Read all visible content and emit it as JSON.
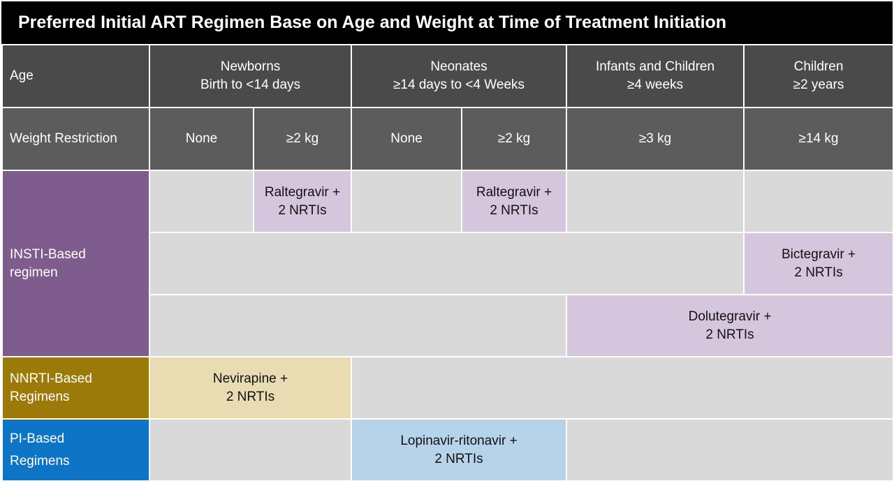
{
  "title": "Preferred Initial ART Regimen Base on Age and Weight at Time of Treatment Initiation",
  "age_label": "Age",
  "weight_label": "Weight Restriction",
  "age_groups": [
    {
      "name": "Newborns",
      "range": "Birth to <14 days"
    },
    {
      "name": "Neonates",
      "range": "≥14 days to <4 Weeks"
    },
    {
      "name": "Infants and Children",
      "range": "≥4 weeks"
    },
    {
      "name": "Children",
      "range": "≥2 years"
    }
  ],
  "weights": [
    "None",
    "≥2 kg",
    "None",
    "≥2 kg",
    "≥3 kg",
    "≥14 kg"
  ],
  "categories": {
    "insti": {
      "line1": "INSTI-Based",
      "line2": "regimen"
    },
    "nnrti": {
      "line1": "NNRTI-Based",
      "line2": "Regimens"
    },
    "pi": {
      "line1": "PI-Based",
      "line2": "Regimens"
    }
  },
  "regimens": {
    "raltegravir_newborn": {
      "line1": "Raltegravir +",
      "line2": "2 NRTIs"
    },
    "raltegravir_neonate": {
      "line1": "Raltegravir +",
      "line2": "2 NRTIs"
    },
    "bictegravir": {
      "line1": "Bictegravir +",
      "line2": "2 NRTIs"
    },
    "dolutegravir": {
      "line1": "Dolutegravir +",
      "line2": "2 NRTIs"
    },
    "nevirapine": {
      "line1": "Nevirapine +",
      "line2": "2 NRTIs"
    },
    "lopinavir": {
      "line1": "Lopinavir-ritonavir +",
      "line2": "2 NRTIs"
    }
  },
  "colors": {
    "header": "#4a4a4a",
    "insti": "#7e5d8e",
    "nnrti": "#9b7a0a",
    "pi": "#0d74c6",
    "empty": "#d9d9d9"
  }
}
